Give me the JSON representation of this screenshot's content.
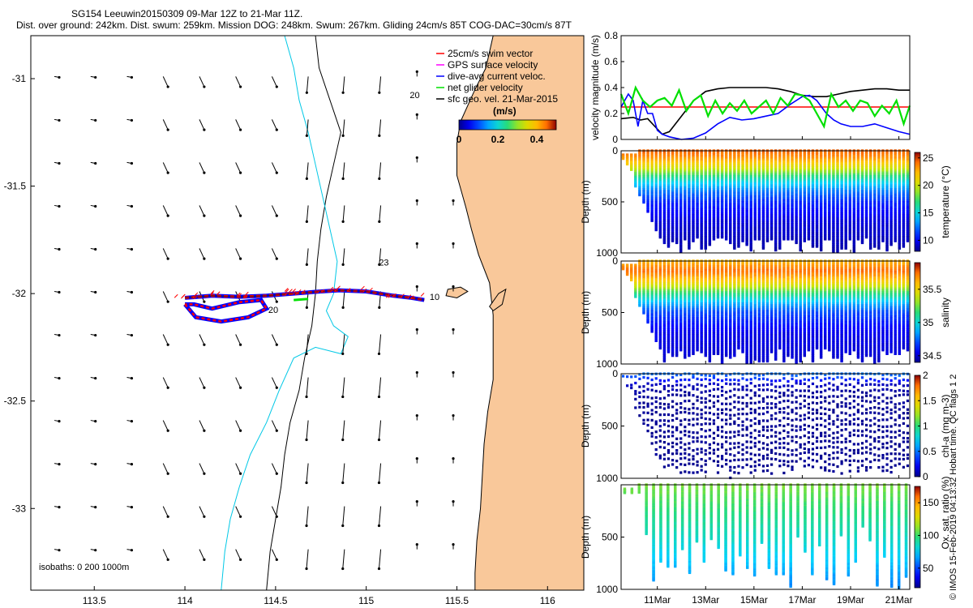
{
  "title": {
    "line1": "SG154 Leeuwin20150309 09-Mar 12Z to 21-Mar 11Z.",
    "line2": "Dist. over ground: 242km. Dist. swum: 259km. Mission DOG: 248km. Swum: 267km. Gliding 24cm/s 85T COG-DAC=30cm/s 87T"
  },
  "credit": "© IMOS 15-Feb-2019 04:13:32 Hobart time. QC flags 1 2",
  "colors": {
    "land": "#f9c89a",
    "coast": "#000000",
    "isobath_200": "#00c8e6",
    "track_red": "#ff0000",
    "track_blue": "#0000ff",
    "net_velocity": "#00e000",
    "model_speed": "#000000"
  },
  "chart_data": [
    {
      "type": "map",
      "name": "glider-track-map",
      "xlim": [
        113.15,
        116.2
      ],
      "ylim": [
        -33.38,
        -30.8
      ],
      "xticks": [
        113.5,
        114,
        114.5,
        115,
        115.5,
        116
      ],
      "xtick_labels": [
        "113.5",
        "114",
        "114.5",
        "115",
        "115.5",
        "116"
      ],
      "yticks": [
        -31,
        -31.5,
        -32,
        -32.5,
        -33
      ],
      "ytick_labels": [
        "-31",
        "-31.5",
        "-32",
        "-32.5",
        "-33"
      ],
      "legend": [
        {
          "label": "25cm/s swim vector",
          "color": "#ff0000"
        },
        {
          "label": "GPS surface velocity",
          "color": "#ff00ff"
        },
        {
          "label": "dive-avg current veloc.",
          "color": "#0000ff"
        },
        {
          "label": "net glider velocity",
          "color": "#00e000"
        },
        {
          "label": "sfc geo. vel. 21-Mar-2015",
          "color": "#000000"
        }
      ],
      "colorbar": {
        "label": "(m/s)",
        "ticks": [
          "0",
          "0.2",
          "0.4"
        ],
        "range": [
          0,
          0.5
        ]
      },
      "isobath_label": "isobaths: 0   200   1000m",
      "annotations": [
        {
          "text": "23",
          "lon": 115.07,
          "lat": -31.87
        },
        {
          "text": "20",
          "lon": 114.46,
          "lat": -32.09
        },
        {
          "text": "10",
          "lon": 115.35,
          "lat": -32.03
        },
        {
          "text": "20",
          "lon": 115.24,
          "lat": -31.09
        }
      ],
      "coastline": [
        [
          115.7,
          -30.8
        ],
        [
          115.66,
          -30.95
        ],
        [
          115.6,
          -31.05
        ],
        [
          115.52,
          -31.2
        ],
        [
          115.5,
          -31.3
        ],
        [
          115.5,
          -31.45
        ],
        [
          115.55,
          -31.6
        ],
        [
          115.58,
          -31.7
        ],
        [
          115.62,
          -31.82
        ],
        [
          115.68,
          -31.95
        ],
        [
          115.7,
          -32.1
        ],
        [
          115.7,
          -32.25
        ],
        [
          115.7,
          -32.4
        ],
        [
          115.67,
          -32.55
        ],
        [
          115.65,
          -32.7
        ],
        [
          115.64,
          -32.85
        ],
        [
          115.63,
          -33.0
        ],
        [
          115.61,
          -33.15
        ],
        [
          115.6,
          -33.3
        ],
        [
          115.6,
          -33.38
        ]
      ],
      "rottnest_island": [
        [
          115.45,
          -31.98
        ],
        [
          115.52,
          -31.97
        ],
        [
          115.56,
          -31.99
        ],
        [
          115.5,
          -32.02
        ],
        [
          115.44,
          -32.01
        ]
      ],
      "garden_island": [
        [
          115.68,
          -32.06
        ],
        [
          115.73,
          -32.0
        ],
        [
          115.77,
          -31.98
        ],
        [
          115.75,
          -32.05
        ],
        [
          115.7,
          -32.08
        ]
      ],
      "isobath_1000m": [
        [
          114.72,
          -30.8
        ],
        [
          114.74,
          -30.95
        ],
        [
          114.8,
          -31.1
        ],
        [
          114.86,
          -31.25
        ],
        [
          114.82,
          -31.4
        ],
        [
          114.78,
          -31.55
        ],
        [
          114.75,
          -31.7
        ],
        [
          114.73,
          -31.85
        ],
        [
          114.72,
          -32.0
        ],
        [
          114.7,
          -32.15
        ],
        [
          114.66,
          -32.3
        ],
        [
          114.63,
          -32.45
        ],
        [
          114.58,
          -32.6
        ],
        [
          114.55,
          -32.75
        ],
        [
          114.53,
          -32.9
        ],
        [
          114.5,
          -33.05
        ],
        [
          114.47,
          -33.2
        ],
        [
          114.45,
          -33.38
        ]
      ],
      "isobath_200m": [
        [
          114.55,
          -30.8
        ],
        [
          114.6,
          -30.95
        ],
        [
          114.63,
          -31.1
        ],
        [
          114.68,
          -31.25
        ],
        [
          114.72,
          -31.4
        ],
        [
          114.76,
          -31.55
        ],
        [
          114.8,
          -31.7
        ],
        [
          114.84,
          -31.85
        ],
        [
          114.82,
          -32.0
        ],
        [
          114.78,
          -32.08
        ],
        [
          114.82,
          -32.15
        ],
        [
          114.9,
          -32.2
        ],
        [
          114.86,
          -32.28
        ],
        [
          114.72,
          -32.25
        ],
        [
          114.6,
          -32.3
        ],
        [
          114.52,
          -32.45
        ],
        [
          114.45,
          -32.6
        ],
        [
          114.36,
          -32.75
        ],
        [
          114.3,
          -32.9
        ],
        [
          114.25,
          -33.05
        ],
        [
          114.22,
          -33.2
        ],
        [
          114.2,
          -33.38
        ]
      ],
      "track": [
        [
          114.0,
          -32.02
        ],
        [
          114.15,
          -32.01
        ],
        [
          114.3,
          -32.015
        ],
        [
          114.45,
          -32.01
        ],
        [
          114.6,
          -32.0
        ],
        [
          114.75,
          -31.99
        ],
        [
          114.85,
          -31.985
        ],
        [
          115.0,
          -31.99
        ],
        [
          115.15,
          -32.01
        ],
        [
          115.25,
          -32.02
        ],
        [
          115.32,
          -32.03
        ]
      ],
      "loop": [
        [
          114.0,
          -32.05
        ],
        [
          114.06,
          -32.11
        ],
        [
          114.2,
          -32.13
        ],
        [
          114.35,
          -32.11
        ],
        [
          114.45,
          -32.07
        ],
        [
          114.42,
          -32.03
        ],
        [
          114.3,
          -32.04
        ],
        [
          114.15,
          -32.07
        ],
        [
          114.05,
          -32.05
        ]
      ]
    },
    {
      "type": "line",
      "name": "velocity-magnitude",
      "ylabel": "velocity magnitude (m/s)",
      "ylim": [
        0,
        0.8
      ],
      "yticks": [
        "0",
        "0.2",
        "0.4",
        "0.6",
        "0.8"
      ],
      "time_range": [
        9.5,
        21.45
      ],
      "series": [
        {
          "name": "model surface speed",
          "color": "#000000",
          "t": [
            9.5,
            10.0,
            10.3,
            10.6,
            10.9,
            11.2,
            11.5,
            12.0,
            12.5,
            13.0,
            13.5,
            14.0,
            14.5,
            15.0,
            15.5,
            16.0,
            16.5,
            17.0,
            17.5,
            18.0,
            18.5,
            19.0,
            19.5,
            20.0,
            20.5,
            21.0,
            21.45
          ],
          "v": [
            0.16,
            0.17,
            0.15,
            0.16,
            0.1,
            0.04,
            0.06,
            0.18,
            0.3,
            0.37,
            0.39,
            0.4,
            0.4,
            0.4,
            0.4,
            0.39,
            0.37,
            0.34,
            0.33,
            0.33,
            0.35,
            0.37,
            0.38,
            0.39,
            0.39,
            0.38,
            0.38
          ]
        },
        {
          "name": "swim speed",
          "color": "#ff0000",
          "t": [
            9.5,
            21.45
          ],
          "v": [
            0.25,
            0.25
          ]
        },
        {
          "name": "dive-avg current",
          "color": "#0000ff",
          "t": [
            9.5,
            9.8,
            10.0,
            10.2,
            10.4,
            10.6,
            10.8,
            11.0,
            11.2,
            11.5,
            12.0,
            12.5,
            13.0,
            13.5,
            14.0,
            14.5,
            15.0,
            15.5,
            16.0,
            16.5,
            17.0,
            17.3,
            17.6,
            18.0,
            18.3,
            18.6,
            19.0,
            19.5,
            20.0,
            20.5,
            21.0,
            21.45
          ],
          "v": [
            0.25,
            0.35,
            0.3,
            0.1,
            0.3,
            0.2,
            0.2,
            0.07,
            0.04,
            0.02,
            0.0,
            0.01,
            0.05,
            0.12,
            0.17,
            0.15,
            0.16,
            0.18,
            0.2,
            0.27,
            0.33,
            0.34,
            0.3,
            0.2,
            0.15,
            0.12,
            0.1,
            0.1,
            0.12,
            0.09,
            0.06,
            0.04
          ]
        },
        {
          "name": "net glider velocity",
          "color": "#00e000",
          "t": [
            9.5,
            9.8,
            10.1,
            10.4,
            10.7,
            11.0,
            11.3,
            11.6,
            11.9,
            12.2,
            12.5,
            12.8,
            13.1,
            13.4,
            13.7,
            14.0,
            14.3,
            14.6,
            14.9,
            15.2,
            15.5,
            15.8,
            16.1,
            16.4,
            16.7,
            17.0,
            17.3,
            17.6,
            17.9,
            18.2,
            18.5,
            18.8,
            19.1,
            19.4,
            19.7,
            20.0,
            20.3,
            20.6,
            20.9,
            21.2,
            21.45
          ],
          "v": [
            0.35,
            0.2,
            0.4,
            0.3,
            0.25,
            0.3,
            0.32,
            0.26,
            0.38,
            0.22,
            0.3,
            0.34,
            0.18,
            0.3,
            0.2,
            0.28,
            0.22,
            0.3,
            0.2,
            0.25,
            0.3,
            0.2,
            0.32,
            0.26,
            0.35,
            0.34,
            0.3,
            0.2,
            0.1,
            0.35,
            0.25,
            0.3,
            0.22,
            0.3,
            0.28,
            0.18,
            0.26,
            0.2,
            0.3,
            0.12,
            0.26
          ]
        }
      ]
    },
    {
      "type": "scatter",
      "name": "temperature-section",
      "ylabel": "Depth (m)",
      "clabel": "temperature (°C)",
      "ylim": [
        0,
        1000
      ],
      "yticks": [
        "0",
        "500",
        "1000"
      ],
      "crange": [
        8,
        26
      ],
      "cticks": [
        "10",
        "15",
        "20",
        "25"
      ],
      "profile": [
        [
          0,
          24.5
        ],
        [
          60,
          23.5
        ],
        [
          120,
          22
        ],
        [
          200,
          19
        ],
        [
          300,
          15
        ],
        [
          400,
          12.5
        ],
        [
          500,
          11
        ],
        [
          700,
          9.5
        ],
        [
          1000,
          8.5
        ]
      ]
    },
    {
      "type": "scatter",
      "name": "salinity-section",
      "ylabel": "Depth (m)",
      "clabel": "salinity",
      "ylim": [
        0,
        1000
      ],
      "yticks": [
        "0",
        "500",
        "1000"
      ],
      "crange": [
        34.4,
        35.9
      ],
      "cticks": [
        "34.5",
        "35",
        "35.5"
      ],
      "profile": [
        [
          0,
          35.6
        ],
        [
          100,
          35.75
        ],
        [
          200,
          35.55
        ],
        [
          300,
          35.2
        ],
        [
          400,
          34.9
        ],
        [
          500,
          34.7
        ],
        [
          700,
          34.55
        ],
        [
          1000,
          34.5
        ]
      ]
    },
    {
      "type": "scatter",
      "name": "chlorophyll-section",
      "ylabel": "Depth (m)",
      "clabel": "chl-a (mg m-3)",
      "ylim": [
        0,
        1000
      ],
      "yticks": [
        "0",
        "500",
        "1000"
      ],
      "crange": [
        0,
        2
      ],
      "cticks": [
        "0",
        "0.5",
        "1",
        "1.5",
        "2"
      ],
      "profile": [
        [
          0,
          0.5
        ],
        [
          50,
          0.35
        ],
        [
          100,
          0.1
        ],
        [
          200,
          0.02
        ],
        [
          1000,
          0.0
        ]
      ]
    },
    {
      "type": "scatter",
      "name": "oxygen-section",
      "ylabel": "Depth (m)",
      "clabel": "Ox. sat. ratio (%)",
      "ylim": [
        0,
        1000
      ],
      "yticks": [
        "500",
        "1000"
      ],
      "crange": [
        20,
        175
      ],
      "cticks": [
        "50",
        "100",
        "150"
      ],
      "profile": [
        [
          0,
          110
        ],
        [
          200,
          100
        ],
        [
          400,
          90
        ],
        [
          600,
          80
        ],
        [
          800,
          70
        ],
        [
          1000,
          60
        ]
      ]
    }
  ],
  "time_axis": {
    "ticks": [
      11,
      13,
      15,
      17,
      19,
      21
    ],
    "labels": [
      "11Mar",
      "13Mar",
      "15Mar",
      "17Mar",
      "19Mar",
      "21Mar"
    ]
  }
}
